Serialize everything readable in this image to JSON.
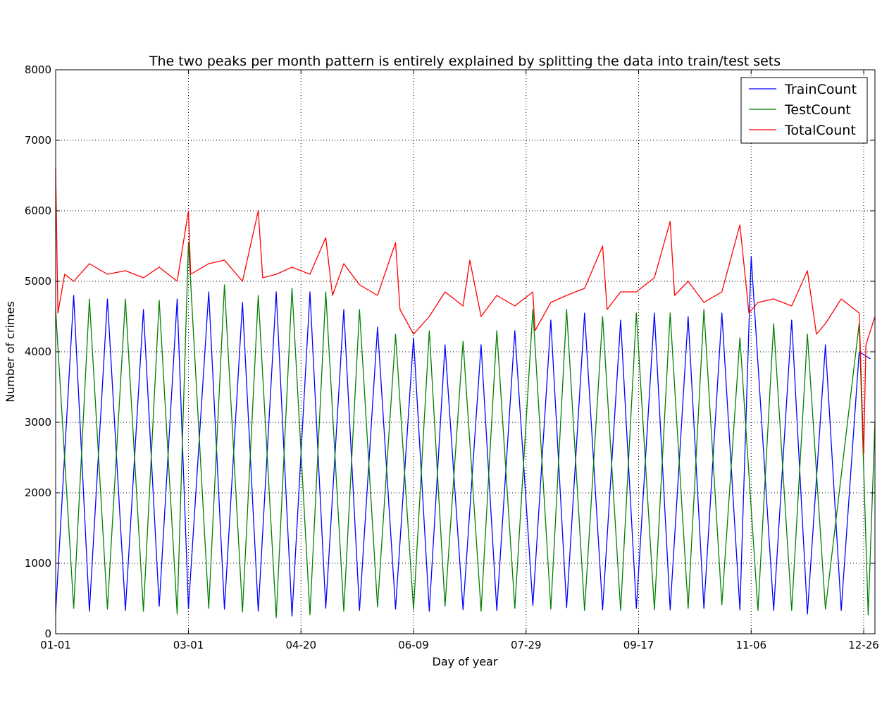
{
  "chart_data": {
    "type": "line",
    "title": "The two peaks per month pattern is entirely explained by splitting the data into train/test sets",
    "xlabel": "Day of year",
    "ylabel": "Number of crimes",
    "xlim": [
      "01-01",
      "12-31"
    ],
    "ylim": [
      0,
      8000
    ],
    "grid": true,
    "legend_position": "top-right",
    "x_tick_labels": [
      "01-01",
      "03-01",
      "04-20",
      "06-09",
      "07-29",
      "09-17",
      "11-06",
      "12-26"
    ],
    "y_tick_labels": [
      "0",
      "1000",
      "2000",
      "3000",
      "4000",
      "5000",
      "6000",
      "7000",
      "8000"
    ],
    "series": [
      {
        "name": "TrainCount",
        "color": "#0000ff",
        "peaks": [
          [
            "01-09",
            4800
          ],
          [
            "01-24",
            4750
          ],
          [
            "02-09",
            4600
          ],
          [
            "02-24",
            4750
          ],
          [
            "03-10",
            4850
          ],
          [
            "03-25",
            4700
          ],
          [
            "04-09",
            4850
          ],
          [
            "04-24",
            4850
          ],
          [
            "05-09",
            4600
          ],
          [
            "05-24",
            4350
          ],
          [
            "06-09",
            4200
          ],
          [
            "06-23",
            4100
          ],
          [
            "07-09",
            4100
          ],
          [
            "07-24",
            4300
          ],
          [
            "08-09",
            4450
          ],
          [
            "08-24",
            4550
          ],
          [
            "09-09",
            4450
          ],
          [
            "09-24",
            4550
          ],
          [
            "10-09",
            4500
          ],
          [
            "10-24",
            4550
          ],
          [
            "11-06",
            5350
          ],
          [
            "11-24",
            4450
          ],
          [
            "12-09",
            4100
          ],
          [
            "12-24",
            4000
          ],
          [
            "12-29",
            3900
          ]
        ],
        "troughs": [
          [
            "01-01",
            300
          ],
          [
            "01-16",
            320
          ],
          [
            "02-01",
            330
          ],
          [
            "02-16",
            390
          ],
          [
            "03-01",
            360
          ],
          [
            "03-17",
            350
          ],
          [
            "04-01",
            320
          ],
          [
            "04-16",
            250
          ],
          [
            "05-01",
            360
          ],
          [
            "05-16",
            330
          ],
          [
            "06-01",
            350
          ],
          [
            "06-16",
            320
          ],
          [
            "07-01",
            340
          ],
          [
            "07-16",
            330
          ],
          [
            "08-01",
            400
          ],
          [
            "08-16",
            370
          ],
          [
            "09-01",
            340
          ],
          [
            "09-16",
            360
          ],
          [
            "10-01",
            340
          ],
          [
            "10-16",
            360
          ],
          [
            "11-01",
            340
          ],
          [
            "11-16",
            330
          ],
          [
            "12-01",
            280
          ],
          [
            "12-16",
            330
          ]
        ]
      },
      {
        "name": "TestCount",
        "color": "#008000",
        "peaks": [
          [
            "01-01",
            4600
          ],
          [
            "01-16",
            4750
          ],
          [
            "02-01",
            4750
          ],
          [
            "02-16",
            4730
          ],
          [
            "03-01",
            5550
          ],
          [
            "03-17",
            4950
          ],
          [
            "04-01",
            4800
          ],
          [
            "04-16",
            4900
          ],
          [
            "05-01",
            4850
          ],
          [
            "05-16",
            4600
          ],
          [
            "06-01",
            4250
          ],
          [
            "06-16",
            4300
          ],
          [
            "07-01",
            4150
          ],
          [
            "07-16",
            4300
          ],
          [
            "08-01",
            4600
          ],
          [
            "08-16",
            4600
          ],
          [
            "09-01",
            4500
          ],
          [
            "09-16",
            4550
          ],
          [
            "10-01",
            4550
          ],
          [
            "10-16",
            4600
          ],
          [
            "11-01",
            4200
          ],
          [
            "11-16",
            4400
          ],
          [
            "12-01",
            4250
          ],
          [
            "12-24",
            4400
          ],
          [
            "12-31",
            3000
          ]
        ],
        "troughs": [
          [
            "01-09",
            360
          ],
          [
            "01-24",
            350
          ],
          [
            "02-09",
            320
          ],
          [
            "02-24",
            280
          ],
          [
            "03-10",
            360
          ],
          [
            "03-25",
            310
          ],
          [
            "04-09",
            230
          ],
          [
            "04-24",
            270
          ],
          [
            "05-09",
            320
          ],
          [
            "05-24",
            380
          ],
          [
            "06-09",
            340
          ],
          [
            "06-23",
            390
          ],
          [
            "07-09",
            320
          ],
          [
            "07-24",
            360
          ],
          [
            "08-09",
            350
          ],
          [
            "08-24",
            330
          ],
          [
            "09-09",
            330
          ],
          [
            "09-24",
            340
          ],
          [
            "10-09",
            360
          ],
          [
            "10-24",
            410
          ],
          [
            "11-09",
            330
          ],
          [
            "11-24",
            330
          ],
          [
            "12-09",
            350
          ],
          [
            "12-28",
            270
          ]
        ]
      },
      {
        "name": "TotalCount",
        "color": "#ff0000",
        "points": [
          [
            "01-01",
            6600
          ],
          [
            "01-02",
            4550
          ],
          [
            "01-05",
            5100
          ],
          [
            "01-09",
            5000
          ],
          [
            "01-16",
            5250
          ],
          [
            "01-24",
            5100
          ],
          [
            "02-01",
            5150
          ],
          [
            "02-09",
            5050
          ],
          [
            "02-16",
            5200
          ],
          [
            "02-24",
            5000
          ],
          [
            "03-01",
            6000
          ],
          [
            "03-02",
            5100
          ],
          [
            "03-10",
            5250
          ],
          [
            "03-17",
            5300
          ],
          [
            "03-25",
            5000
          ],
          [
            "04-01",
            6000
          ],
          [
            "04-03",
            5050
          ],
          [
            "04-09",
            5100
          ],
          [
            "04-16",
            5200
          ],
          [
            "04-24",
            5100
          ],
          [
            "05-01",
            5620
          ],
          [
            "05-04",
            4800
          ],
          [
            "05-09",
            5250
          ],
          [
            "05-16",
            4950
          ],
          [
            "05-24",
            4800
          ],
          [
            "06-01",
            5550
          ],
          [
            "06-03",
            4600
          ],
          [
            "06-09",
            4250
          ],
          [
            "06-16",
            4500
          ],
          [
            "06-23",
            4850
          ],
          [
            "07-01",
            4650
          ],
          [
            "07-04",
            5300
          ],
          [
            "07-09",
            4500
          ],
          [
            "07-16",
            4800
          ],
          [
            "07-24",
            4650
          ],
          [
            "08-01",
            4850
          ],
          [
            "08-02",
            4300
          ],
          [
            "08-09",
            4700
          ],
          [
            "08-16",
            4800
          ],
          [
            "08-24",
            4900
          ],
          [
            "09-01",
            5500
          ],
          [
            "09-03",
            4600
          ],
          [
            "09-09",
            4850
          ],
          [
            "09-16",
            4850
          ],
          [
            "09-24",
            5050
          ],
          [
            "10-01",
            5850
          ],
          [
            "10-03",
            4800
          ],
          [
            "10-09",
            5000
          ],
          [
            "10-16",
            4700
          ],
          [
            "10-24",
            4850
          ],
          [
            "11-01",
            5800
          ],
          [
            "11-05",
            4550
          ],
          [
            "11-09",
            4700
          ],
          [
            "11-16",
            4750
          ],
          [
            "11-24",
            4650
          ],
          [
            "12-01",
            5150
          ],
          [
            "12-05",
            4250
          ],
          [
            "12-09",
            4400
          ],
          [
            "12-16",
            4750
          ],
          [
            "12-24",
            4550
          ],
          [
            "12-26",
            2550
          ],
          [
            "12-27",
            4100
          ],
          [
            "12-31",
            4500
          ]
        ]
      }
    ]
  }
}
